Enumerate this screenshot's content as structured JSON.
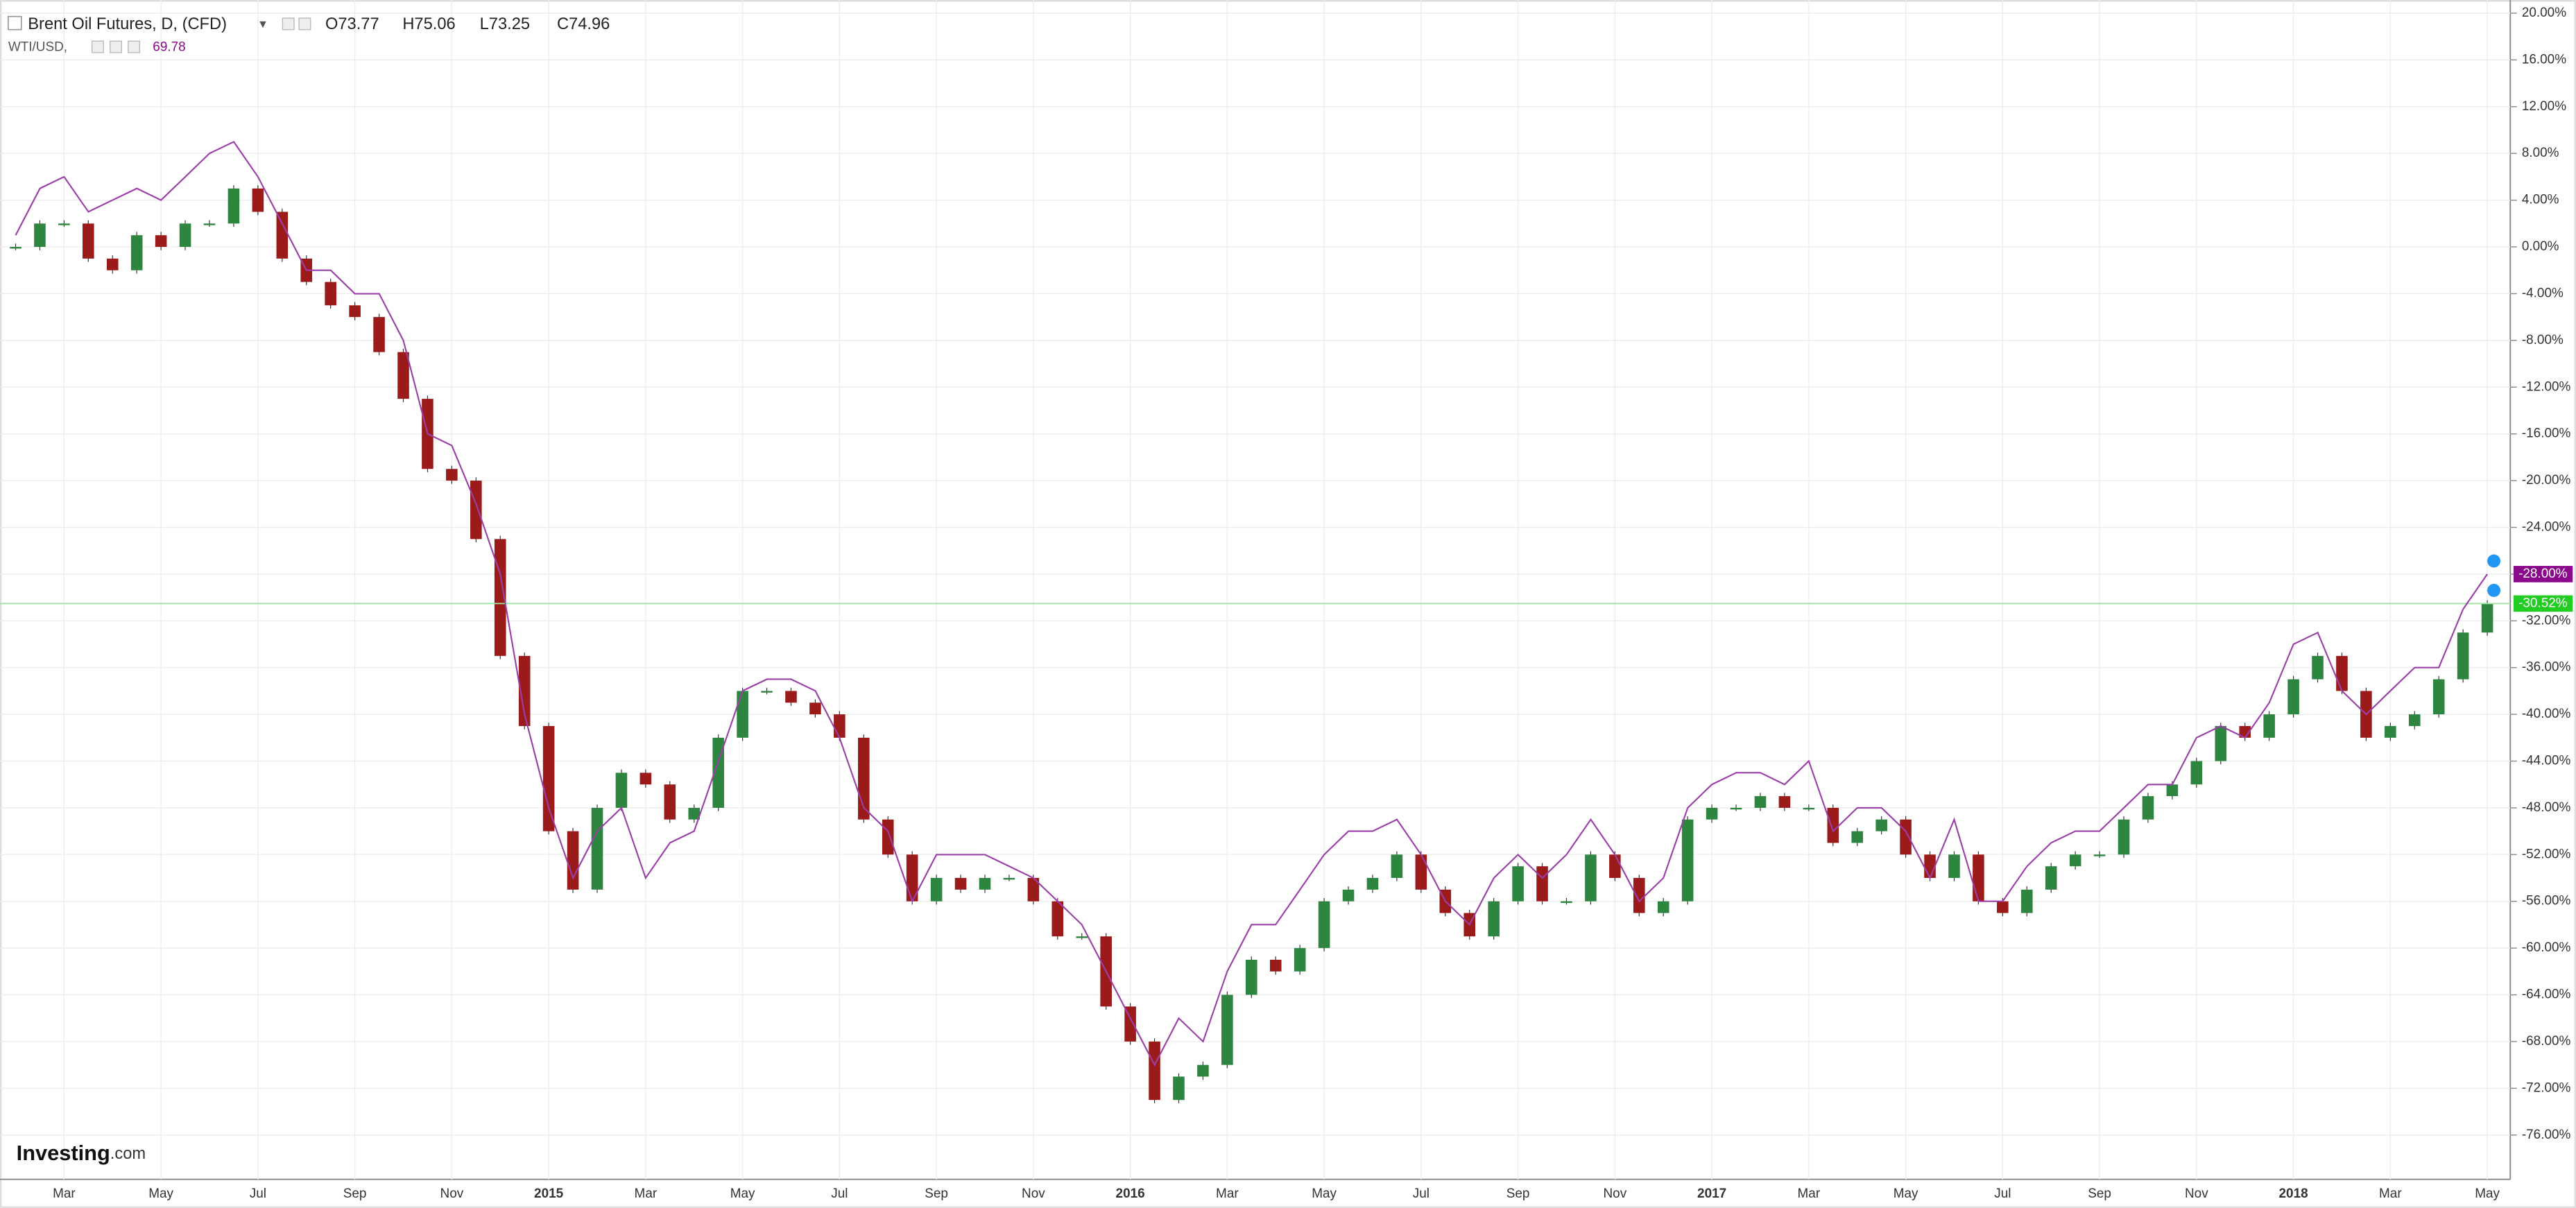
{
  "chart_data": {
    "type": "line",
    "title": "Brent Oil Futures, D, (CFD)",
    "ohlc": [
      "O73.77",
      "H75.06",
      "L73.25",
      "C74.96"
    ],
    "compare_label": "WTI/USD,",
    "compare_value": "69.78",
    "logo": "Investing",
    "logo_suffix": ".com",
    "categories": [
      null,
      null,
      "Mar",
      null,
      null,
      null,
      "May",
      null,
      null,
      null,
      "Jul",
      null,
      null,
      null,
      "Sep",
      null,
      null,
      null,
      "Nov",
      null,
      null,
      null,
      "2015",
      null,
      null,
      null,
      "Mar",
      null,
      null,
      null,
      "May",
      null,
      null,
      null,
      "Jul",
      null,
      null,
      null,
      "Sep",
      null,
      null,
      null,
      "Nov",
      null,
      null,
      null,
      "2016",
      null,
      null,
      null,
      "Mar",
      null,
      null,
      null,
      "May",
      null,
      null,
      null,
      "Jul",
      null,
      null,
      null,
      "Sep",
      null,
      null,
      null,
      "Nov",
      null,
      null,
      null,
      "2017",
      null,
      null,
      null,
      "Mar",
      null,
      null,
      null,
      "May",
      null,
      null,
      null,
      "Jul",
      null,
      null,
      null,
      "Sep",
      null,
      null,
      null,
      "Nov",
      null,
      null,
      null,
      "2018",
      null,
      null,
      null,
      "Mar",
      null,
      null,
      null,
      "May"
    ],
    "series": [
      {
        "name": "Brent Oil Futures",
        "style": "bars",
        "color": "#2e8540",
        "down_color": "#9b1b1b",
        "last_color": "#22cc22",
        "last_label": "-30.52%",
        "values": [
          0,
          2,
          2,
          -1,
          -2,
          1,
          0,
          2,
          2,
          5,
          3,
          -1,
          -3,
          -5,
          -6,
          -9,
          -13,
          -19,
          -20,
          -25,
          -35,
          -41,
          -50,
          -55,
          -48,
          -45,
          -46,
          -49,
          -48,
          -42,
          -38,
          -38,
          -39,
          -40,
          -42,
          -49,
          -52,
          -56,
          -54,
          -55,
          -54,
          -54,
          -56,
          -59,
          -59,
          -65,
          -68,
          -73,
          -71,
          -70,
          -64,
          -61,
          -62,
          -60,
          -56,
          -55,
          -54,
          -52,
          -55,
          -57,
          -59,
          -56,
          -53,
          -56,
          -56,
          -52,
          -54,
          -57,
          -56,
          -49,
          -48,
          -48,
          -47,
          -48,
          -48,
          -51,
          -50,
          -49,
          -52,
          -54,
          -52,
          -56,
          -57,
          -55,
          -53,
          -52,
          -52,
          -49,
          -47,
          -46,
          -44,
          -41,
          -42,
          -40,
          -37,
          -35,
          -38,
          -42,
          -41,
          -40,
          -37,
          -33,
          -30.52
        ]
      },
      {
        "name": "WTI/USD",
        "style": "line",
        "color": "#9b3fa8",
        "last_color": "#8b0a8b",
        "last_label": "-28.00%",
        "values": [
          1,
          5,
          6,
          3,
          4,
          5,
          4,
          6,
          8,
          9,
          6,
          2,
          -2,
          -2,
          -4,
          -4,
          -8,
          -16,
          -17,
          -22,
          -28,
          -40,
          -48,
          -54,
          -50,
          -48,
          -54,
          -51,
          -50,
          -44,
          -38,
          -37,
          -37,
          -38,
          -42,
          -48,
          -50,
          -56,
          -52,
          -52,
          -52,
          -53,
          -54,
          -56,
          -58,
          -62,
          -66,
          -70,
          -66,
          -68,
          -62,
          -58,
          -58,
          -55,
          -52,
          -50,
          -50,
          -49,
          -52,
          -56,
          -58,
          -54,
          -52,
          -54,
          -52,
          -49,
          -52,
          -56,
          -54,
          -48,
          -46,
          -45,
          -45,
          -46,
          -44,
          -50,
          -48,
          -48,
          -50,
          -54,
          -49,
          -56,
          -56,
          -53,
          -51,
          -50,
          -50,
          -48,
          -46,
          -46,
          -42,
          -41,
          -42,
          -39,
          -34,
          -33,
          -38,
          -40,
          -38,
          -36,
          -36,
          -31,
          -28
        ]
      }
    ],
    "ylim": [
      20.8,
      -79.5
    ],
    "yticks": [
      {
        "value": 20,
        "label": "20.00%"
      },
      {
        "value": 16,
        "label": "16.00%"
      },
      {
        "value": 12,
        "label": "12.00%"
      },
      {
        "value": 8,
        "label": "8.00%"
      },
      {
        "value": 4,
        "label": "4.00%"
      },
      {
        "value": 0,
        "label": "0.00%"
      },
      {
        "value": -4,
        "label": "-4.00%"
      },
      {
        "value": -8,
        "label": "-8.00%"
      },
      {
        "value": -12,
        "label": "-12.00%"
      },
      {
        "value": -16,
        "label": "-16.00%"
      },
      {
        "value": -20,
        "label": "-20.00%"
      },
      {
        "value": -24,
        "label": "-24.00%"
      },
      {
        "value": -28,
        "label": "-28.00%"
      },
      {
        "value": -32,
        "label": "-32.00%"
      },
      {
        "value": -36,
        "label": "-36.00%"
      },
      {
        "value": -40,
        "label": "-40.00%"
      },
      {
        "value": -44,
        "label": "-44.00%"
      },
      {
        "value": -48,
        "label": "-48.00%"
      },
      {
        "value": -52,
        "label": "-52.00%"
      },
      {
        "value": -56,
        "label": "-56.00%"
      },
      {
        "value": -60,
        "label": "-60.00%"
      },
      {
        "value": -64,
        "label": "-64.00%"
      },
      {
        "value": -68,
        "label": "-68.00%"
      },
      {
        "value": -72,
        "label": "-72.00%"
      },
      {
        "value": -76,
        "label": "-76.00%"
      }
    ],
    "grid": true
  }
}
